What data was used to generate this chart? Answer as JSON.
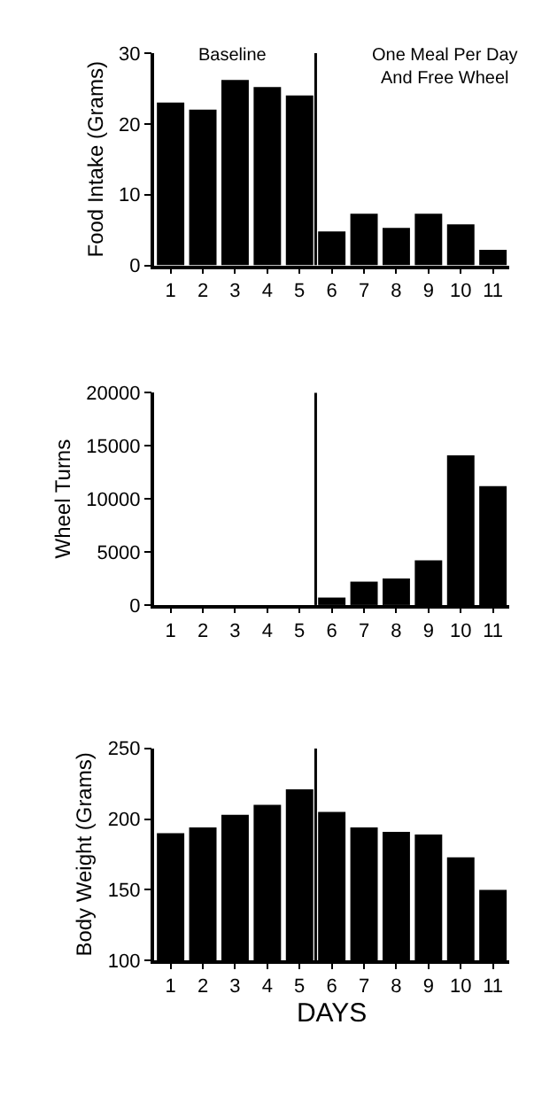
{
  "chart_data": [
    {
      "type": "bar",
      "ylabel": "Food Intake (Grams)",
      "x": [
        1,
        2,
        3,
        4,
        5,
        6,
        7,
        8,
        9,
        10,
        11
      ],
      "xlim": [
        0.5,
        11.5
      ],
      "xticks": [
        1,
        2,
        3,
        4,
        5,
        6,
        7,
        8,
        9,
        10,
        11
      ],
      "ylim": [
        0,
        30
      ],
      "yticks": [
        0,
        10,
        20,
        30
      ],
      "values": [
        23,
        22,
        26.2,
        25.2,
        24,
        4.8,
        7.3,
        5.3,
        7.3,
        5.8,
        2.2
      ],
      "color": "#000000",
      "ref_lines": [
        {
          "axis": "x",
          "value": 5.5,
          "color": "#000000"
        }
      ],
      "annotations": [
        "Baseline",
        "One Meal Per Day\nAnd Free Wheel"
      ]
    },
    {
      "type": "bar",
      "ylabel": "Wheel Turns",
      "x": [
        1,
        2,
        3,
        4,
        5,
        6,
        7,
        8,
        9,
        10,
        11
      ],
      "xlim": [
        0.5,
        11.5
      ],
      "xticks": [
        1,
        2,
        3,
        4,
        5,
        6,
        7,
        8,
        9,
        10,
        11
      ],
      "ylim": [
        0,
        20000
      ],
      "yticks": [
        0,
        5000,
        10000,
        15000,
        20000
      ],
      "values": [
        0,
        0,
        0,
        0,
        0,
        700,
        2200,
        2500,
        4200,
        14100,
        11200
      ],
      "color": "#000000",
      "ref_lines": [
        {
          "axis": "x",
          "value": 5.5,
          "color": "#000000"
        }
      ]
    },
    {
      "type": "bar",
      "ylabel": "Body Weight (Grams)",
      "xlabel": "DAYS",
      "x": [
        1,
        2,
        3,
        4,
        5,
        6,
        7,
        8,
        9,
        10,
        11
      ],
      "xlim": [
        0.5,
        11.5
      ],
      "xticks": [
        1,
        2,
        3,
        4,
        5,
        6,
        7,
        8,
        9,
        10,
        11
      ],
      "ylim": [
        100,
        250
      ],
      "yticks": [
        100,
        150,
        200,
        250
      ],
      "values": [
        190,
        194,
        203,
        210,
        221,
        205,
        194,
        191,
        189,
        173,
        150
      ],
      "color": "#000000",
      "ref_lines": [
        {
          "axis": "x",
          "value": 5.5,
          "color": "#000000"
        }
      ]
    }
  ]
}
